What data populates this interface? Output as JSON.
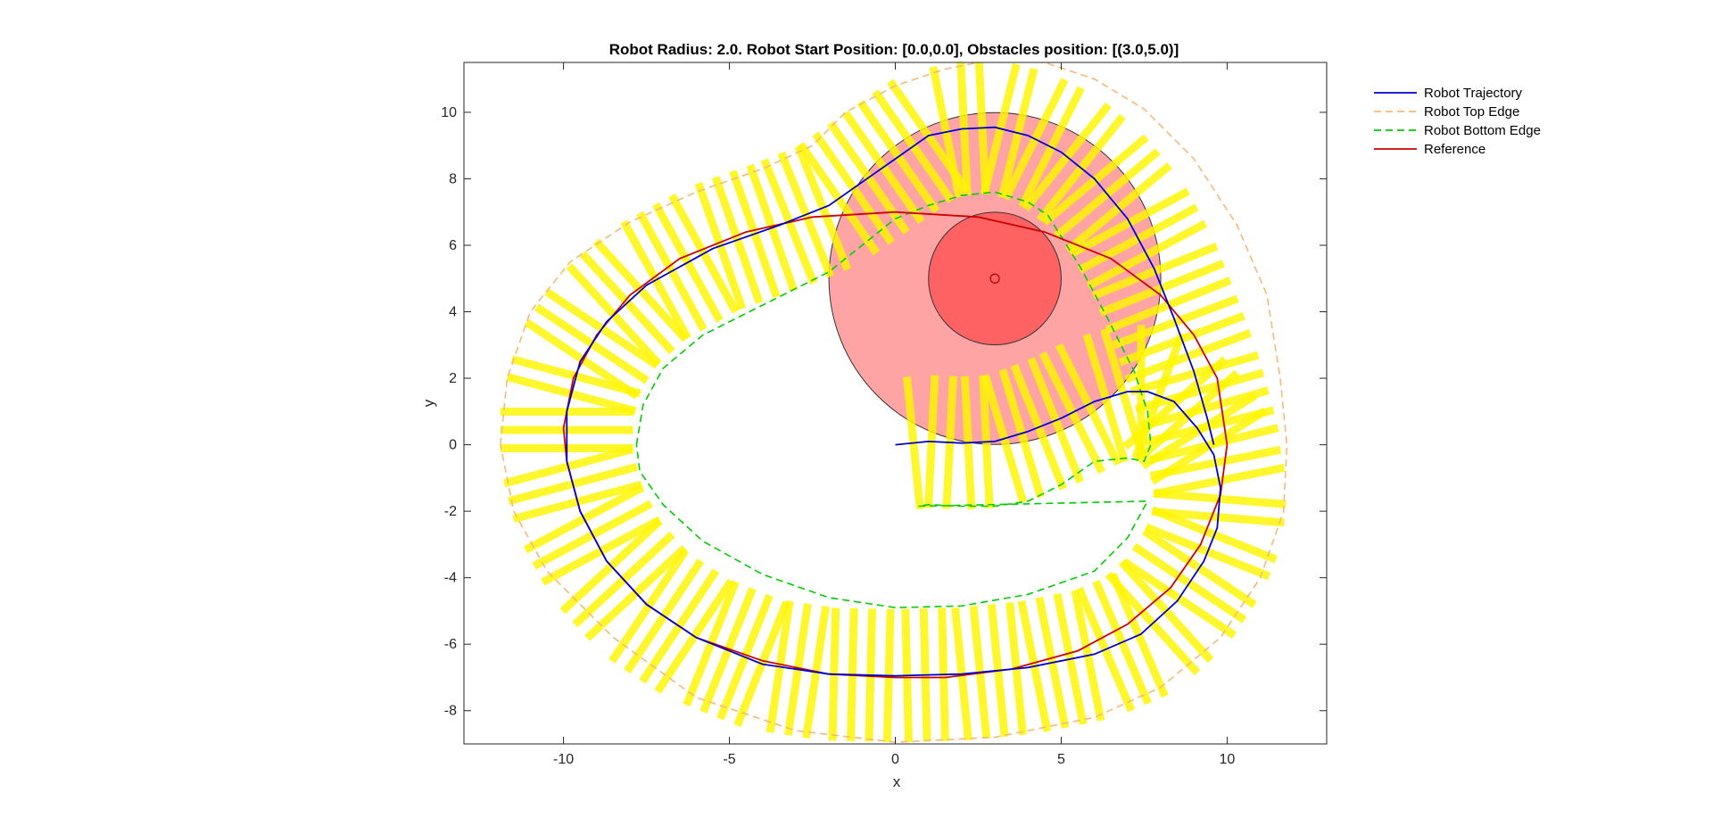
{
  "chart_data": {
    "type": "line",
    "title": "Robot Radius: 2.0. Robot Start Position: [0.0,0.0], Obstacles position: [(3.0,5.0)]",
    "xlabel": "x",
    "ylabel": "y",
    "xlim": [
      -13,
      13
    ],
    "ylim": [
      -9,
      11.5
    ],
    "xticks": [
      -10,
      -5,
      0,
      5,
      10
    ],
    "yticks": [
      -8,
      -6,
      -4,
      -2,
      0,
      2,
      4,
      6,
      8,
      10
    ],
    "grid": false,
    "legend_position": "outside-top-right",
    "robot_radius": 2.0,
    "robot_start": [
      0.0,
      0.0
    ],
    "obstacles": [
      {
        "center": [
          3.0,
          5.0
        ],
        "radius": 2.0,
        "influence_radius": 5.0
      }
    ],
    "series": [
      {
        "name": "Robot Trajectory",
        "style": "solid",
        "color": "#0000CD",
        "points": [
          [
            0,
            0
          ],
          [
            1,
            0.1
          ],
          [
            2,
            0.05
          ],
          [
            3,
            0.1
          ],
          [
            4,
            0.4
          ],
          [
            5,
            0.8
          ],
          [
            6,
            1.3
          ],
          [
            7,
            1.6
          ],
          [
            7.6,
            1.6
          ],
          [
            8.4,
            1.3
          ],
          [
            9.1,
            0.5
          ],
          [
            9.6,
            -0.3
          ],
          [
            9.8,
            -1.3
          ],
          [
            9.7,
            -2.5
          ],
          [
            9.3,
            -3.5
          ],
          [
            8.5,
            -4.7
          ],
          [
            7.4,
            -5.7
          ],
          [
            6,
            -6.3
          ],
          [
            4,
            -6.7
          ],
          [
            2,
            -6.9
          ],
          [
            0,
            -6.95
          ],
          [
            -2,
            -6.9
          ],
          [
            -4,
            -6.6
          ],
          [
            -6,
            -5.8
          ],
          [
            -7.5,
            -4.8
          ],
          [
            -8.7,
            -3.5
          ],
          [
            -9.5,
            -2
          ],
          [
            -9.9,
            -0.5
          ],
          [
            -9.9,
            1
          ],
          [
            -9.5,
            2.5
          ],
          [
            -8.7,
            3.7
          ],
          [
            -7.5,
            4.8
          ],
          [
            -5.5,
            5.9
          ],
          [
            -3.5,
            6.6
          ],
          [
            -2,
            7.2
          ],
          [
            -1,
            7.9
          ],
          [
            0,
            8.6
          ],
          [
            1,
            9.3
          ],
          [
            2,
            9.5
          ],
          [
            3,
            9.55
          ],
          [
            4,
            9.3
          ],
          [
            5,
            8.8
          ],
          [
            6,
            8
          ],
          [
            7,
            6.8
          ],
          [
            7.8,
            5.3
          ],
          [
            8.4,
            3.8
          ],
          [
            9,
            2.2
          ],
          [
            9.4,
            0.8
          ],
          [
            9.6,
            0
          ]
        ]
      },
      {
        "name": "Robot Top Edge",
        "style": "dashed",
        "color": "#F7B978",
        "points": [
          [
            -11.9,
            0
          ],
          [
            -11.7,
            2
          ],
          [
            -11,
            4
          ],
          [
            -9.8,
            5.5
          ],
          [
            -8,
            6.7
          ],
          [
            -6,
            7.6
          ],
          [
            -4,
            8.3
          ],
          [
            -2.5,
            9
          ],
          [
            -1.5,
            10
          ],
          [
            0,
            10.8
          ],
          [
            1.5,
            11.3
          ],
          [
            3,
            11.6
          ],
          [
            4.5,
            11.5
          ],
          [
            6,
            11
          ],
          [
            7.5,
            10.1
          ],
          [
            9,
            8.6
          ],
          [
            10.3,
            6.6
          ],
          [
            11.2,
            4.5
          ],
          [
            11.6,
            2
          ],
          [
            11.8,
            0
          ],
          [
            11.7,
            -2
          ],
          [
            11,
            -4
          ],
          [
            9.8,
            -5.8
          ],
          [
            8,
            -7.3
          ],
          [
            6,
            -8.2
          ],
          [
            3,
            -8.8
          ],
          [
            0,
            -8.95
          ],
          [
            -3,
            -8.6
          ],
          [
            -6,
            -7.6
          ],
          [
            -8.5,
            -5.8
          ],
          [
            -10.5,
            -3.8
          ],
          [
            -11.5,
            -2
          ],
          [
            -11.9,
            0
          ]
        ]
      },
      {
        "name": "Robot Bottom Edge",
        "style": "dashed",
        "color": "#00CC00",
        "points": [
          [
            -7.8,
            0
          ],
          [
            -7.6,
            1.2
          ],
          [
            -7,
            2.3
          ],
          [
            -5.8,
            3.3
          ],
          [
            -4,
            4.2
          ],
          [
            -2,
            5.2
          ],
          [
            -1,
            6
          ],
          [
            0,
            6.8
          ],
          [
            1,
            7.2
          ],
          [
            2,
            7.5
          ],
          [
            3,
            7.6
          ],
          [
            4,
            7.3
          ],
          [
            4.6,
            6.9
          ],
          [
            5.6,
            5.3
          ],
          [
            6.4,
            3.8
          ],
          [
            7.2,
            2.2
          ],
          [
            7.6,
            1
          ],
          [
            7.7,
            0
          ],
          [
            7.5,
            -0.5
          ],
          [
            7,
            -0.4
          ],
          [
            6,
            -0.5
          ],
          [
            5,
            -1.2
          ],
          [
            4,
            -1.7
          ],
          [
            3,
            -1.85
          ],
          [
            2,
            -1.85
          ],
          [
            1,
            -1.8
          ],
          [
            0.7,
            -1.85
          ],
          [
            7.6,
            -1.7
          ],
          [
            7,
            -2.8
          ],
          [
            6,
            -3.8
          ],
          [
            4,
            -4.5
          ],
          [
            2,
            -4.85
          ],
          [
            0,
            -4.9
          ],
          [
            -2,
            -4.6
          ],
          [
            -4,
            -3.9
          ],
          [
            -5.8,
            -2.9
          ],
          [
            -7,
            -1.8
          ],
          [
            -7.7,
            -0.8
          ],
          [
            -7.8,
            0
          ]
        ]
      },
      {
        "name": "Reference",
        "style": "solid",
        "color": "#CC0000",
        "points": [
          [
            10,
            0
          ],
          [
            9.8,
            -1.5
          ],
          [
            9.2,
            -3
          ],
          [
            8.3,
            -4.3
          ],
          [
            7,
            -5.4
          ],
          [
            5.5,
            -6.2
          ],
          [
            3.5,
            -6.75
          ],
          [
            1.5,
            -7
          ],
          [
            0,
            -7
          ],
          [
            -2,
            -6.9
          ],
          [
            -4,
            -6.5
          ],
          [
            -6,
            -5.8
          ],
          [
            -7.5,
            -4.8
          ],
          [
            -8.7,
            -3.5
          ],
          [
            -9.5,
            -2
          ],
          [
            -9.9,
            -0.5
          ],
          [
            -10,
            0.5
          ],
          [
            -9.7,
            2
          ],
          [
            -9,
            3.3
          ],
          [
            -8,
            4.5
          ],
          [
            -6.5,
            5.6
          ],
          [
            -4.5,
            6.4
          ],
          [
            -2.5,
            6.85
          ],
          [
            0,
            7
          ],
          [
            2.5,
            6.85
          ],
          [
            4.5,
            6.4
          ],
          [
            6.5,
            5.6
          ],
          [
            8,
            4.5
          ],
          [
            9,
            3.3
          ],
          [
            9.7,
            2
          ],
          [
            10,
            0
          ]
        ]
      }
    ]
  }
}
